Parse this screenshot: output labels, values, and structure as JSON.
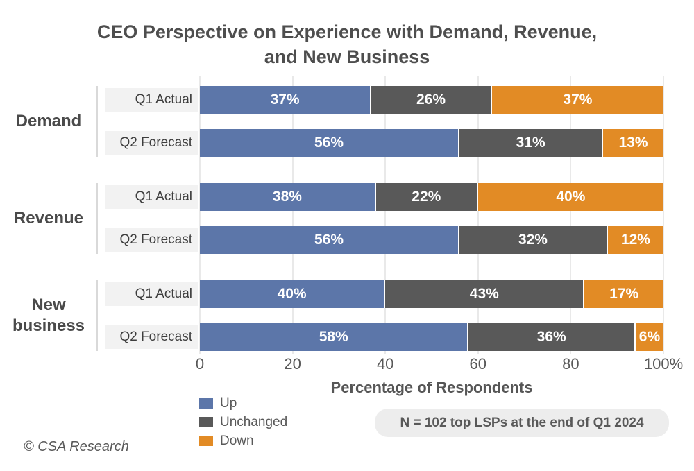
{
  "title_lines": [
    "CEO Perspective on Experience with Demand, Revenue,",
    "and New Business"
  ],
  "chart_data": {
    "type": "bar",
    "orientation": "horizontal",
    "stacked": true,
    "title": "CEO Perspective on Experience with Demand, Revenue, and New Business",
    "xlabel": "Percentage of Respondents",
    "xlim": [
      0,
      100
    ],
    "x_ticks": [
      0,
      20,
      40,
      60,
      80,
      100
    ],
    "x_tick_labels": [
      "0",
      "20",
      "40",
      "60",
      "80",
      "100%"
    ],
    "grid": true,
    "value_suffix": "%",
    "series_order": [
      "up",
      "unchanged",
      "down"
    ],
    "legend": [
      {
        "key": "up",
        "label": "Up",
        "color": "#5C76A9"
      },
      {
        "key": "unchanged",
        "label": "Unchanged",
        "color": "#595959"
      },
      {
        "key": "down",
        "label": "Down",
        "color": "#E28B25"
      }
    ],
    "legend_position": "bottom-left",
    "groups": [
      {
        "label": "Demand",
        "rows": [
          {
            "label": "Q1 Actual",
            "values": {
              "up": 37,
              "unchanged": 26,
              "down": 37
            }
          },
          {
            "label": "Q2 Forecast",
            "values": {
              "up": 56,
              "unchanged": 31,
              "down": 13
            }
          }
        ]
      },
      {
        "label": "Revenue",
        "rows": [
          {
            "label": "Q1 Actual",
            "values": {
              "up": 38,
              "unchanged": 22,
              "down": 40
            }
          },
          {
            "label": "Q2 Forecast",
            "values": {
              "up": 56,
              "unchanged": 32,
              "down": 12
            }
          }
        ]
      },
      {
        "label": "New business",
        "rows": [
          {
            "label": "Q1 Actual",
            "values": {
              "up": 40,
              "unchanged": 43,
              "down": 17
            }
          },
          {
            "label": "Q2 Forecast",
            "values": {
              "up": 58,
              "unchanged": 36,
              "down": 6
            }
          }
        ]
      }
    ]
  },
  "note": "N = 102 top LSPs at the end of Q1 2024",
  "copyright": "© CSA Research",
  "colors": {
    "up": "#5C76A9",
    "unchanged": "#595959",
    "down": "#E28B25",
    "title_text": "#4E4E4E",
    "axis_text": "#595959",
    "row_label_bg": "#F2F2F2",
    "note_bg": "#EDEDED",
    "gridline": "#E9E9E9",
    "divider": "#D9D9D9"
  }
}
